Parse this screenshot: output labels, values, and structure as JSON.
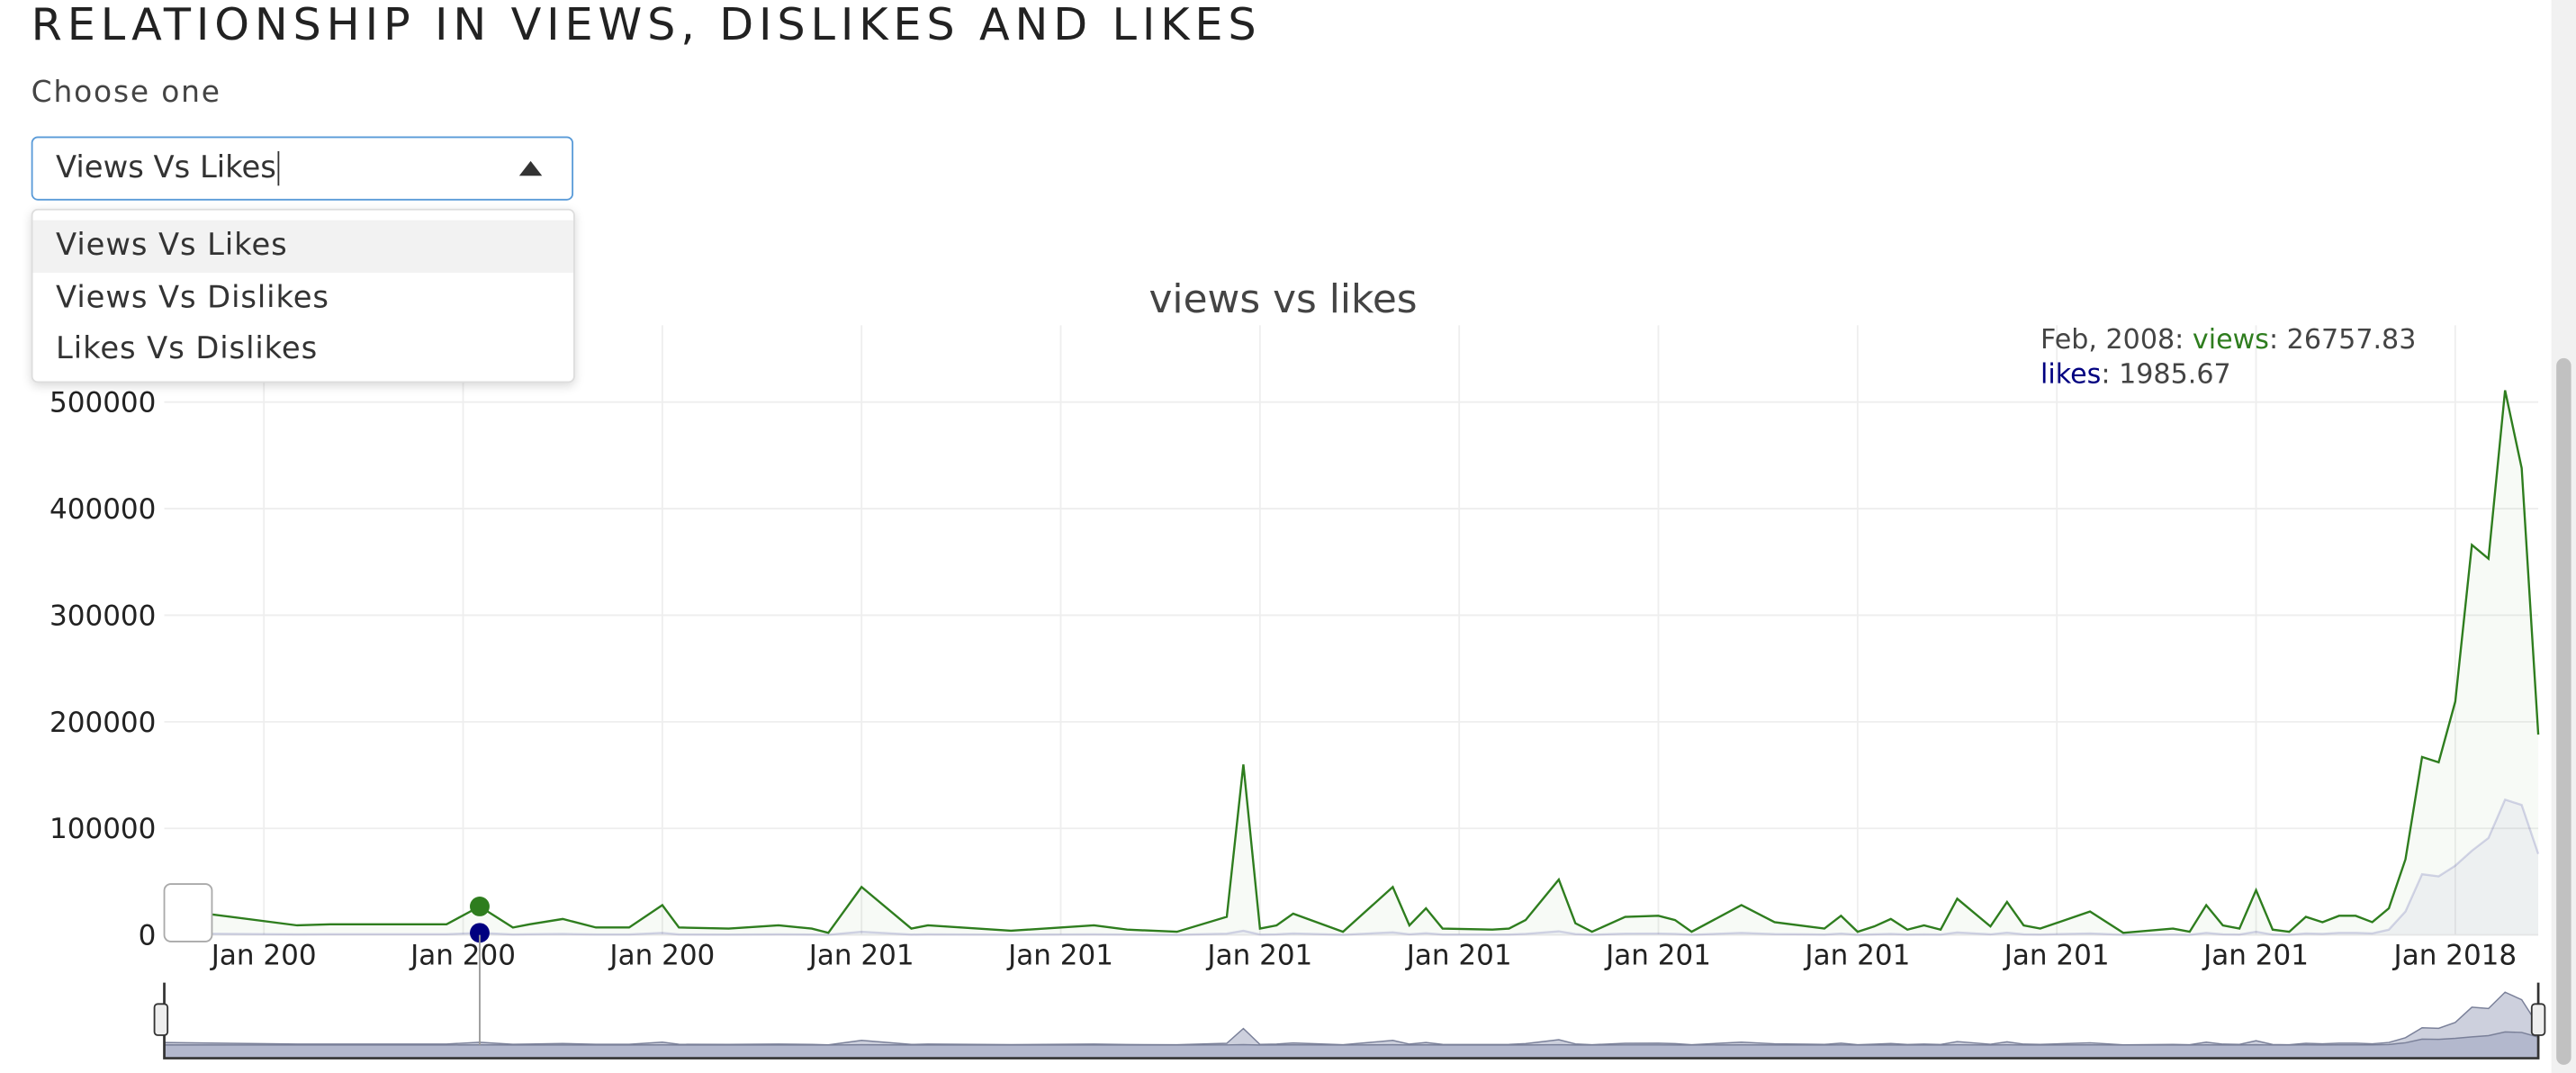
{
  "header": {
    "title": "RELATIONSHIP IN VIEWS, DISLIKES AND LIKES",
    "label": "Choose one"
  },
  "dropdown": {
    "value": "Views Vs Likes",
    "options": [
      "Views Vs Likes",
      "Views Vs Dislikes",
      "Likes Vs Dislikes"
    ]
  },
  "chart_data": {
    "type": "line",
    "title": "views vs likes",
    "x": [
      "2006-07",
      "2007-03",
      "2007-05",
      "2007-12",
      "2008-02",
      "2008-04",
      "2008-05",
      "2008-07",
      "2008-09",
      "2008-11",
      "2009-01",
      "2009-02",
      "2009-05",
      "2009-08",
      "2009-10",
      "2009-11",
      "2010-01",
      "2010-04",
      "2010-05",
      "2010-10",
      "2011-03",
      "2011-05",
      "2011-08",
      "2011-11",
      "2011-12",
      "2012-01",
      "2012-02",
      "2012-03",
      "2012-06",
      "2012-09",
      "2012-10",
      "2012-11",
      "2012-12",
      "2013-03",
      "2013-04",
      "2013-05",
      "2013-07",
      "2013-08",
      "2013-09",
      "2013-11",
      "2014-01",
      "2014-02",
      "2014-03",
      "2014-06",
      "2014-08",
      "2014-10",
      "2014-11",
      "2014-12",
      "2015-01",
      "2015-02",
      "2015-03",
      "2015-04",
      "2015-05",
      "2015-06",
      "2015-07",
      "2015-09",
      "2015-10",
      "2015-11",
      "2015-12",
      "2016-03",
      "2016-05",
      "2016-08",
      "2016-09",
      "2016-10",
      "2016-11",
      "2016-12",
      "2017-01",
      "2017-02",
      "2017-03",
      "2017-04",
      "2017-05",
      "2017-06",
      "2017-07",
      "2017-08",
      "2017-09",
      "2017-10",
      "2017-11",
      "2017-12",
      "2018-01",
      "2018-02",
      "2018-03",
      "2018-04",
      "2018-05",
      "2018-06"
    ],
    "series": [
      {
        "name": "views",
        "color": "#2e7d1e",
        "values": [
          25000,
          9000,
          10000,
          10000,
          26757.83,
          7000,
          10000,
          15000,
          7000,
          7000,
          28000,
          7000,
          6000,
          9000,
          6000,
          2000,
          45000,
          6000,
          9000,
          4000,
          9000,
          5000,
          3000,
          17000,
          160000,
          6000,
          9000,
          20000,
          3000,
          45000,
          9000,
          25000,
          6000,
          5000,
          6000,
          14000,
          52000,
          11000,
          3000,
          17000,
          18000,
          14000,
          3000,
          28000,
          12000,
          8000,
          6000,
          18000,
          3000,
          8000,
          15000,
          5000,
          9000,
          5000,
          34000,
          8000,
          31000,
          9000,
          6000,
          22000,
          2000,
          6000,
          3000,
          28000,
          9000,
          6000,
          42000,
          5000,
          3000,
          17000,
          12000,
          18000,
          18000,
          12000,
          25000,
          71000,
          167000,
          162000,
          219000,
          366000,
          353000,
          511000,
          438000,
          188000
        ]
      },
      {
        "name": "likes",
        "color": "#000080",
        "values": [
          1500,
          600,
          700,
          700,
          1985.67,
          500,
          700,
          1000,
          500,
          500,
          2000,
          500,
          400,
          600,
          400,
          150,
          3000,
          400,
          600,
          300,
          600,
          350,
          200,
          1200,
          4000,
          400,
          600,
          1400,
          200,
          2500,
          600,
          1700,
          400,
          350,
          400,
          1000,
          3500,
          800,
          200,
          1200,
          1300,
          1000,
          200,
          2000,
          800,
          550,
          400,
          1300,
          200,
          550,
          1000,
          350,
          600,
          350,
          2400,
          550,
          2200,
          600,
          400,
          1500,
          150,
          400,
          200,
          2000,
          600,
          400,
          3000,
          350,
          200,
          1500,
          1000,
          2000,
          2000,
          1500,
          5000,
          22000,
          57000,
          55000,
          65000,
          79000,
          91000,
          127000,
          122000,
          76000
        ]
      }
    ],
    "xlim": [
      "2006-07",
      "2018-06"
    ],
    "xticks": [
      {
        "value": "2007-01",
        "label": "Jan 200"
      },
      {
        "value": "2008-01",
        "label": "Jan 200"
      },
      {
        "value": "2009-01",
        "label": "Jan 200"
      },
      {
        "value": "2010-01",
        "label": "Jan 201"
      },
      {
        "value": "2011-01",
        "label": "Jan 201"
      },
      {
        "value": "2012-01",
        "label": "Jan 201"
      },
      {
        "value": "2013-01",
        "label": "Jan 201"
      },
      {
        "value": "2014-01",
        "label": "Jan 201"
      },
      {
        "value": "2015-01",
        "label": "Jan 201"
      },
      {
        "value": "2016-01",
        "label": "Jan 201"
      },
      {
        "value": "2017-01",
        "label": "Jan 201"
      },
      {
        "value": "2018-01",
        "label": "Jan 2018"
      }
    ],
    "ylim": [
      0,
      572000
    ],
    "yticks": [
      0,
      100000,
      200000,
      300000,
      400000,
      500000
    ],
    "grid": true,
    "tooltip": {
      "label": "Feb, 2008",
      "x": "2008-02"
    }
  }
}
